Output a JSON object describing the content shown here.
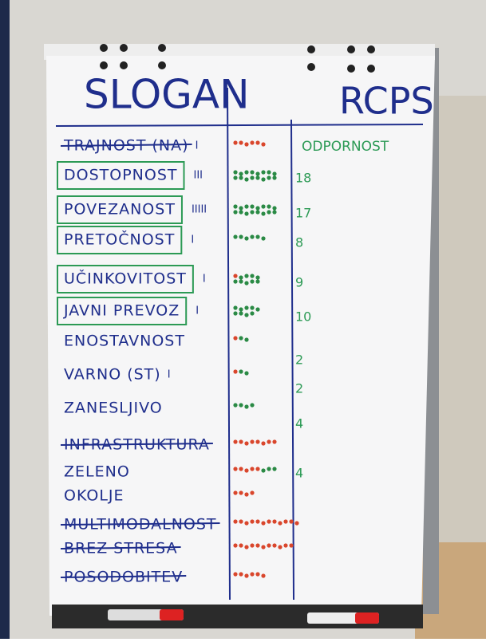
{
  "header": {
    "left": "SLOGAN",
    "right": "RCPS"
  },
  "column_header": "ODPORNOST",
  "rows": [
    {
      "label": "TRAJNOST (NA)",
      "tally": "I",
      "struck": true
    },
    {
      "label": "DOSTOPNOST",
      "tally": "III",
      "score": "18",
      "boxed": true
    },
    {
      "label": "POVEZANOST",
      "tally": "IIIII",
      "score": "17",
      "boxed": true
    },
    {
      "label": "PRETOČNOST",
      "tally": "I",
      "score": "8",
      "boxed": true
    },
    {
      "label": "UČINKOVITOST",
      "tally": "I",
      "score": "9",
      "boxed": true
    },
    {
      "label": "JAVNI PREVOZ",
      "tally": "I",
      "score": "10",
      "boxed": true
    },
    {
      "label": "ENOSTAVNOST",
      "score": "2"
    },
    {
      "label": "VARNO (ST)",
      "tally": "I",
      "score": "2"
    },
    {
      "label": "ZANESLJIVO",
      "score": "4"
    },
    {
      "label": "INFRASTRUKTURA",
      "struck": true
    },
    {
      "label": "ZELENO",
      "score": "4"
    },
    {
      "label": "OKOLJE"
    },
    {
      "label": "MULTIMODALNOST",
      "struck": true
    },
    {
      "label": "BREZ STRESA",
      "struck": true
    },
    {
      "label": "POSODOBITEV",
      "struck": true
    }
  ]
}
